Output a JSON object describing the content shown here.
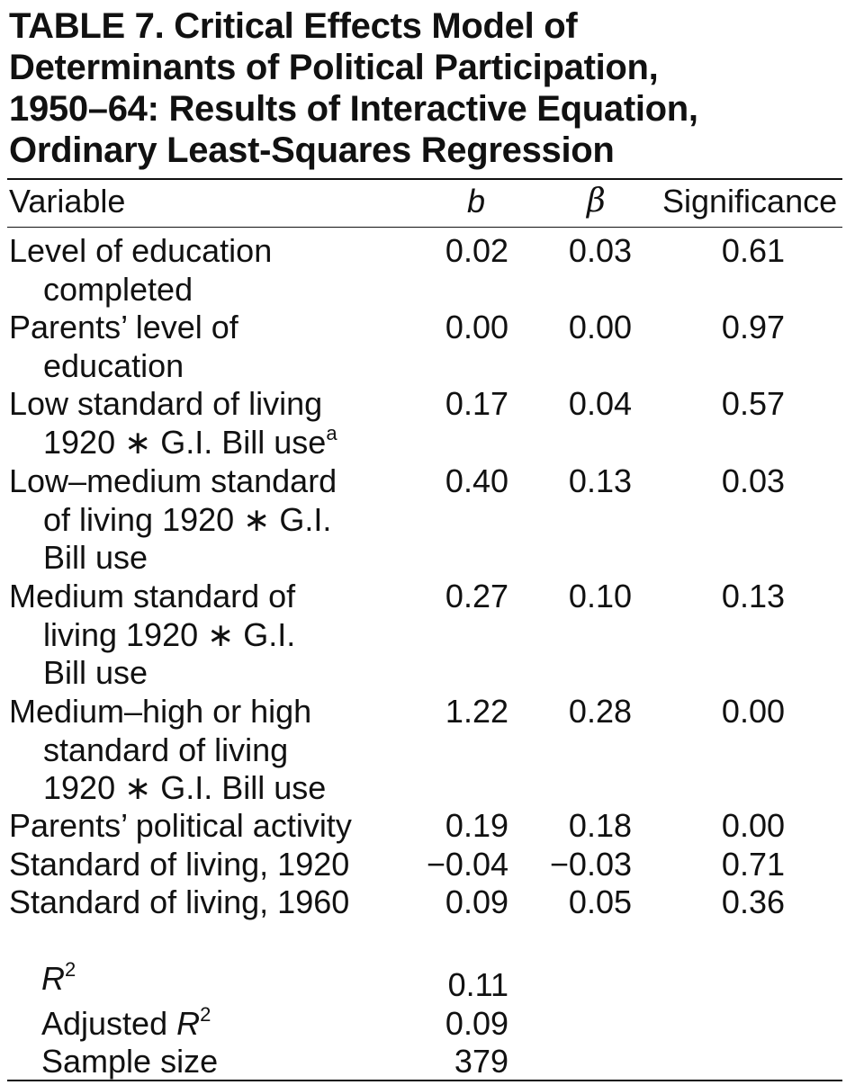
{
  "title_lines": [
    "TABLE 7.   Critical Effects Model of",
    "Determinants of Political Participation,",
    "1950–64: Results of Interactive Equation,",
    "Ordinary Least-Squares Regression"
  ],
  "columns": {
    "variable": "Variable",
    "b": "b",
    "beta": "β",
    "significance": "Significance"
  },
  "rows": [
    {
      "lines": [
        "Level of education",
        "completed"
      ],
      "b": "0.02",
      "beta": "0.03",
      "sig": "0.61"
    },
    {
      "lines": [
        "Parents’ level of",
        "education"
      ],
      "b": "0.00",
      "beta": "0.00",
      "sig": "0.97"
    },
    {
      "lines": [
        "Low standard of living",
        "1920 ∗ G.I. Bill use"
      ],
      "sup": "a",
      "b": "0.17",
      "beta": "0.04",
      "sig": "0.57"
    },
    {
      "lines": [
        "Low–medium standard",
        "of living 1920 ∗ G.I.",
        "Bill use"
      ],
      "b": "0.40",
      "beta": "0.13",
      "sig": "0.03"
    },
    {
      "lines": [
        "Medium standard of",
        "living 1920 ∗ G.I.",
        "Bill use"
      ],
      "b": "0.27",
      "beta": "0.10",
      "sig": "0.13"
    },
    {
      "lines": [
        "Medium–high or high",
        "standard of living",
        "1920 ∗ G.I. Bill use"
      ],
      "b": "1.22",
      "beta": "0.28",
      "sig": "0.00"
    },
    {
      "lines": [
        "Parents’ political activity"
      ],
      "b": "0.19",
      "beta": "0.18",
      "sig": "0.00"
    },
    {
      "lines": [
        "Standard of living, 1920"
      ],
      "b": "−0.04",
      "beta": "−0.03",
      "sig": "0.71"
    },
    {
      "lines": [
        "Standard of living, 1960"
      ],
      "b": "0.09",
      "beta": "0.05",
      "sig": "0.36"
    }
  ],
  "stats": {
    "r2": {
      "label": "R",
      "sup": "2",
      "value": "0.11"
    },
    "adj_r2": {
      "prefix": "Adjusted ",
      "label": "R",
      "sup": "2",
      "value": "0.09"
    },
    "n": {
      "label": "Sample size",
      "value": "379"
    }
  }
}
